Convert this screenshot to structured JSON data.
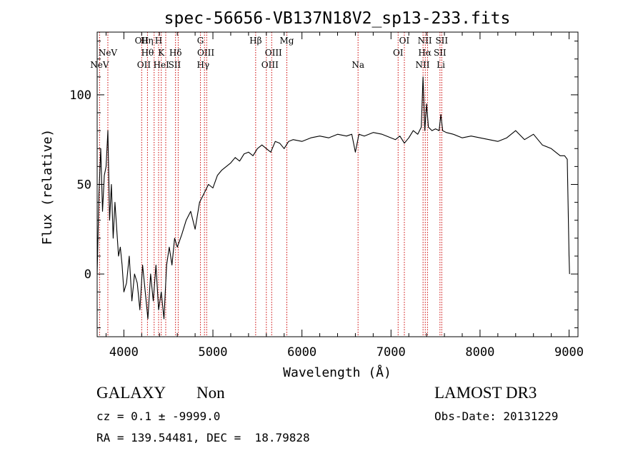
{
  "chart_data": {
    "type": "line",
    "title": "spec-56656-VB137N18V2_sp13-233.fits",
    "xlabel": "Wavelength (Å)",
    "ylabel": "Flux (relative)",
    "xlim": [
      3700,
      9100
    ],
    "ylim": [
      -35,
      135
    ],
    "xticks": [
      4000,
      5000,
      6000,
      7000,
      8000,
      9000
    ],
    "xtick_labels": [
      "4000",
      "5000",
      "6000",
      "7000",
      "8000",
      "9000"
    ],
    "yticks": [
      0,
      50,
      100
    ],
    "ytick_labels": [
      "0",
      "50",
      "100"
    ],
    "series": [
      {
        "name": "flux",
        "x": [
          3700,
          3720,
          3740,
          3760,
          3780,
          3800,
          3820,
          3840,
          3860,
          3880,
          3900,
          3920,
          3940,
          3960,
          3980,
          4000,
          4030,
          4060,
          4090,
          4120,
          4150,
          4180,
          4210,
          4240,
          4270,
          4300,
          4330,
          4360,
          4390,
          4420,
          4450,
          4480,
          4510,
          4540,
          4570,
          4600,
          4650,
          4700,
          4750,
          4800,
          4850,
          4900,
          4950,
          5000,
          5050,
          5100,
          5150,
          5200,
          5250,
          5300,
          5350,
          5400,
          5450,
          5500,
          5550,
          5600,
          5650,
          5700,
          5750,
          5800,
          5850,
          5900,
          6000,
          6100,
          6200,
          6300,
          6400,
          6500,
          6560,
          6600,
          6640,
          6700,
          6800,
          6900,
          7000,
          7050,
          7100,
          7150,
          7200,
          7250,
          7300,
          7340,
          7360,
          7380,
          7400,
          7420,
          7460,
          7500,
          7540,
          7560,
          7580,
          7620,
          7700,
          7800,
          7900,
          8000,
          8100,
          8200,
          8300,
          8400,
          8500,
          8600,
          8700,
          8800,
          8850,
          8900,
          8950,
          8980,
          9000,
          9005
        ],
        "y": [
          0,
          45,
          70,
          35,
          55,
          60,
          80,
          30,
          50,
          20,
          40,
          25,
          10,
          15,
          5,
          -10,
          -5,
          10,
          -15,
          0,
          -5,
          -20,
          5,
          -10,
          -25,
          0,
          -15,
          5,
          -20,
          -10,
          -25,
          5,
          15,
          5,
          20,
          15,
          22,
          30,
          35,
          25,
          40,
          45,
          50,
          48,
          55,
          58,
          60,
          62,
          65,
          63,
          67,
          68,
          66,
          70,
          72,
          70,
          68,
          74,
          73,
          70,
          74,
          75,
          74,
          76,
          77,
          76,
          78,
          77,
          78,
          68,
          78,
          77,
          79,
          78,
          76,
          75,
          77,
          73,
          76,
          80,
          78,
          82,
          110,
          80,
          95,
          82,
          80,
          81,
          80,
          89,
          80,
          79,
          78,
          76,
          77,
          76,
          75,
          74,
          76,
          80,
          75,
          78,
          72,
          70,
          68,
          66,
          66,
          64,
          10,
          0
        ]
      }
    ],
    "annotations": [
      {
        "label": "NeV",
        "wavelength": 3727,
        "row": 3
      },
      {
        "label": "NeV",
        "wavelength": 3820,
        "row": 2
      },
      {
        "label": "OII",
        "wavelength": 4200,
        "row": 1
      },
      {
        "label": "Hη",
        "wavelength": 4260,
        "row": 1
      },
      {
        "label": "H",
        "wavelength": 4390,
        "row": 1
      },
      {
        "label": "Hθ",
        "wavelength": 4265,
        "row": 2
      },
      {
        "label": "K",
        "wavelength": 4420,
        "row": 2
      },
      {
        "label": "Hδ",
        "wavelength": 4580,
        "row": 2
      },
      {
        "label": "OII",
        "wavelength": 4225,
        "row": 3
      },
      {
        "label": "HeI",
        "wavelength": 4420,
        "row": 3
      },
      {
        "label": "SII",
        "wavelength": 4570,
        "row": 3
      },
      {
        "label": "G",
        "wavelength": 4860,
        "row": 1
      },
      {
        "label": "OIII",
        "wavelength": 4920,
        "row": 2
      },
      {
        "label": "Hγ",
        "wavelength": 4890,
        "row": 3
      },
      {
        "label": "Hβ",
        "wavelength": 5480,
        "row": 1
      },
      {
        "label": "Mg",
        "wavelength": 5830,
        "row": 1
      },
      {
        "label": "OIII",
        "wavelength": 5680,
        "row": 2
      },
      {
        "label": "OIII",
        "wavelength": 5640,
        "row": 3
      },
      {
        "label": "Na",
        "wavelength": 6630,
        "row": 3
      },
      {
        "label": "OI",
        "wavelength": 7150,
        "row": 1
      },
      {
        "label": "OI",
        "wavelength": 7080,
        "row": 2
      },
      {
        "label": "NII",
        "wavelength": 7380,
        "row": 1
      },
      {
        "label": "SII",
        "wavelength": 7570,
        "row": 1
      },
      {
        "label": "Hα",
        "wavelength": 7380,
        "row": 2
      },
      {
        "label": "SII",
        "wavelength": 7550,
        "row": 2
      },
      {
        "label": "NII",
        "wavelength": 7355,
        "row": 3
      },
      {
        "label": "Li",
        "wavelength": 7560,
        "row": 3
      }
    ],
    "line_wavelengths": [
      3727,
      3820,
      4200,
      4265,
      4340,
      4390,
      4420,
      4470,
      4580,
      4610,
      4860,
      4905,
      4930,
      5480,
      5600,
      5660,
      5830,
      6630,
      7080,
      7150,
      7360,
      7385,
      7410,
      7550,
      7570
    ]
  },
  "footer": {
    "object_class": "GALAXY",
    "subclass": "Non",
    "survey": "LAMOST DR3",
    "cz_line": "cz = 0.1 ± -9999.0",
    "obs_date_line": "Obs-Date: 20131229",
    "coords_line": "RA = 139.54481, DEC =  18.79828"
  },
  "colors": {
    "spectrum": "#000000",
    "line_markers": "#cc0000",
    "axes": "#000000"
  }
}
